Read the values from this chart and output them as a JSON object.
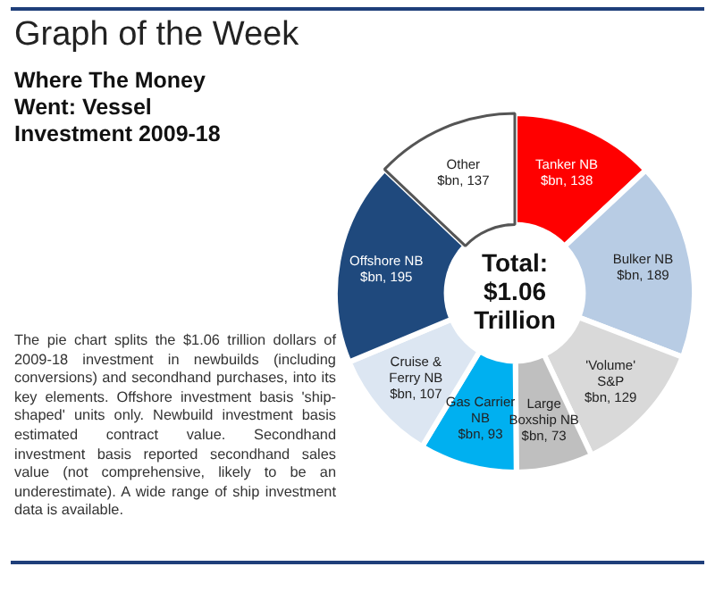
{
  "chart_data": {
    "type": "donut",
    "title": "Graph of the Week",
    "subtitle": "Where The Money Went: Vessel Investment 2009-18",
    "categories": [
      "Tanker NB",
      "Bulker NB",
      "'Volume' S&P",
      "Large Boxship NB",
      "Gas Carrier NB",
      "Cruise & Ferry NB",
      "Offshore NB",
      "Other"
    ],
    "values": [
      138,
      189,
      129,
      73,
      93,
      107,
      195,
      137
    ],
    "value_labels": [
      "$bn, 138",
      "$bn, 189",
      "$bn, 129",
      "$bn, 73",
      "$bn, 93",
      "$bn, 107",
      "$bn, 195",
      "$bn, 137"
    ],
    "colors": [
      "#ff0000",
      "#b8cce4",
      "#d9d9d9",
      "#bfbfbf",
      "#00b0f0",
      "#dce6f2",
      "#1f497d",
      "#ffffff"
    ],
    "legend": false,
    "annotations": [
      "Total: $1.06 Trillion",
      "The pie chart splits the $1.06 trillion dollars of 2009-18 investment in newbuilds (including conversions) and secondhand purchases, into its key elements. Offshore investment basis 'ship-shaped' units only. Newbuild investment basis estimated contract value. Secondhand investment basis reported secondhand sales value (not comprehensive, likely to be an underestimate). A wide range of ship investment data is available."
    ]
  }
}
